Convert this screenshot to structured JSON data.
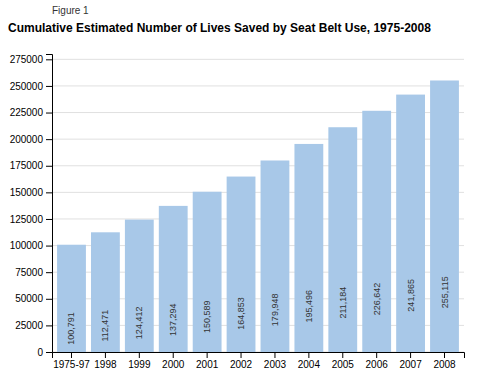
{
  "chart_data": {
    "type": "bar",
    "subtitle": "Figure 1",
    "title": "Cumulative Estimated Number of Lives Saved by Seat Belt Use, 1975-2008",
    "categories": [
      "1975-97",
      "1998",
      "1999",
      "2000",
      "2001",
      "2002",
      "2003",
      "2004",
      "2005",
      "2006",
      "2007",
      "2008"
    ],
    "values": [
      100791,
      112471,
      124412,
      137294,
      150589,
      164853,
      179948,
      195496,
      211184,
      226642,
      241865,
      255115
    ],
    "value_labels": [
      "100,791",
      "112,471",
      "124,412",
      "137,294",
      "150,589",
      "164,853",
      "179,948",
      "195,496",
      "211,184",
      "226,642",
      "241,865",
      "255,115"
    ],
    "data_labels": true,
    "color": "#a8c8e8",
    "ylim": [
      0,
      280000
    ],
    "yticks": [
      0,
      25000,
      50000,
      75000,
      100000,
      125000,
      150000,
      175000,
      200000,
      225000,
      250000,
      275000
    ],
    "grid": true
  }
}
